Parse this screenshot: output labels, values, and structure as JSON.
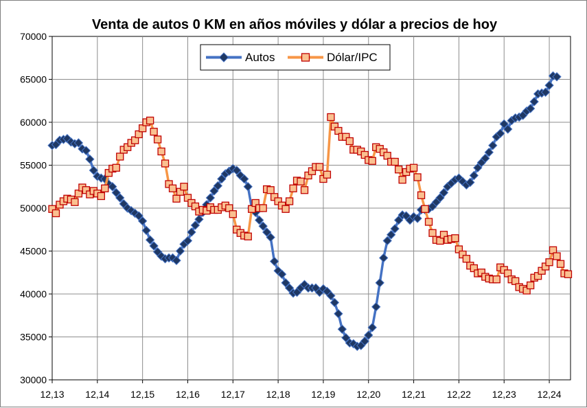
{
  "chart_data": {
    "type": "line",
    "title": "Venta de autos 0 KM en años móviles y dólar a precios de hoy",
    "xlabel": "",
    "ylabel": "",
    "ylim": [
      30000,
      70000
    ],
    "yticks": [
      "30000",
      "35000",
      "40000",
      "45000",
      "50000",
      "55000",
      "60000",
      "65000",
      "70000"
    ],
    "xticks": [
      "12,13",
      "12,14",
      "12,15",
      "12,16",
      "12,17",
      "12,18",
      "12,19",
      "12,20",
      "12,21",
      "12,22",
      "12,23",
      "12,24"
    ],
    "grid": true,
    "legend_position": "top-center",
    "series": [
      {
        "name": "Autos",
        "color": "#4472C4",
        "marker_fill": "#1F3864",
        "marker": "diamond",
        "start_tick": "12,13",
        "values": [
          57300,
          57400,
          57900,
          58000,
          58100,
          57700,
          57500,
          57600,
          56900,
          56700,
          55700,
          54400,
          53700,
          53500,
          53400,
          52800,
          52500,
          51800,
          51200,
          50500,
          50000,
          49700,
          49400,
          49100,
          48500,
          47400,
          46300,
          45600,
          44900,
          44400,
          44100,
          44200,
          44200,
          43900,
          45000,
          45800,
          46200,
          47200,
          48000,
          48700,
          49500,
          50400,
          51200,
          52000,
          52600,
          53400,
          54000,
          54300,
          54600,
          54400,
          53800,
          53400,
          52500,
          50000,
          49500,
          48600,
          47900,
          47200,
          46600,
          43800,
          42700,
          42300,
          41300,
          40700,
          40100,
          40200,
          40700,
          41100,
          40700,
          40700,
          40700,
          40200,
          40600,
          40300,
          39800,
          39000,
          37700,
          35900,
          34900,
          34300,
          34200,
          33900,
          34000,
          34500,
          35200,
          36100,
          38500,
          41300,
          44200,
          46200,
          46900,
          47600,
          48600,
          49200,
          49100,
          48600,
          49000,
          48800,
          49800,
          49800,
          49900,
          50200,
          50700,
          51200,
          51800,
          52500,
          52900,
          53300,
          53500,
          53100,
          52700,
          53000,
          53800,
          54700,
          55300,
          55800,
          56500,
          57300,
          58300,
          58700,
          59800,
          59200,
          60200,
          60500,
          60600,
          60800,
          61300,
          61600,
          62400,
          63300,
          63400,
          63500,
          64300,
          65400,
          65300
        ]
      },
      {
        "name": "Dólar/IPC",
        "color": "#F79646",
        "marker_fill": "#FAC090",
        "marker_stroke": "#C00000",
        "marker": "square",
        "start_tick": "12,13",
        "values": [
          49900,
          49400,
          50400,
          50800,
          51100,
          51000,
          50700,
          51700,
          52400,
          52100,
          51600,
          52000,
          51700,
          51400,
          52300,
          54100,
          54600,
          54700,
          56000,
          56800,
          57100,
          57600,
          57900,
          58600,
          59300,
          60000,
          60200,
          58900,
          58000,
          56600,
          55200,
          52800,
          52300,
          51100,
          51900,
          52500,
          51200,
          50600,
          50200,
          49600,
          49800,
          49700,
          50100,
          49800,
          49800,
          50100,
          50300,
          50000,
          49300,
          47500,
          47100,
          46800,
          46700,
          49900,
          50600,
          50000,
          50000,
          52200,
          52100,
          51300,
          50800,
          50300,
          49900,
          50800,
          52300,
          53200,
          53100,
          52100,
          53800,
          54300,
          54800,
          54800,
          53400,
          53900,
          60600,
          59500,
          59000,
          58300,
          58300,
          57800,
          56800,
          56800,
          56600,
          56200,
          55600,
          55500,
          57100,
          56900,
          56500,
          56100,
          55400,
          55400,
          54500,
          53300,
          54200,
          54600,
          54700,
          53600,
          51500,
          49900,
          48400,
          47100,
          46300,
          46200,
          46900,
          46300,
          46400,
          46500,
          45200,
          44600,
          44100,
          43300,
          43000,
          42400,
          42500,
          42000,
          41800,
          41700,
          41700,
          43100,
          42800,
          42400,
          41700,
          41500,
          40800,
          40600,
          40400,
          41000,
          41900,
          42100,
          42700,
          43200,
          43700,
          45100,
          44400,
          43500,
          42400,
          42300
        ]
      }
    ]
  }
}
